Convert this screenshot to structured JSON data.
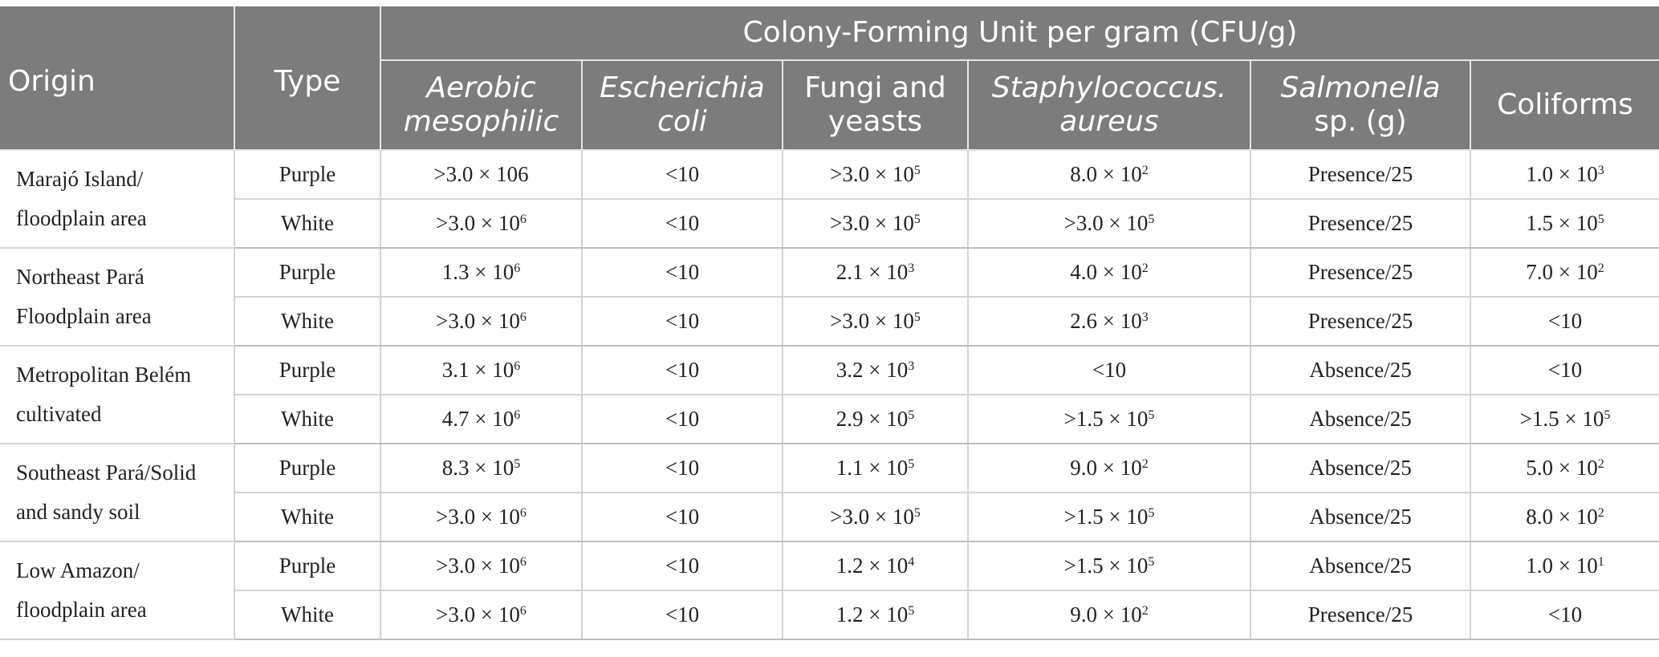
{
  "table": {
    "col_origin": "Origin",
    "col_type": "Type",
    "col_group": "Colony-Forming Unit per gram (CFU/g)",
    "sub": {
      "aerobic_1": "Aerobic",
      "aerobic_2": "mesophilic",
      "ecoli_1": "Escherichia",
      "ecoli_2": "coli",
      "fungi_1": "Fungi and",
      "fungi_2": "yeasts",
      "staph_1": "Staphylococcus.",
      "staph_2": "aureus",
      "salm_1": "Salmonella",
      "salm_2": "sp. (g)",
      "coliforms": "Coliforms"
    },
    "groups": [
      {
        "origin": "Marajó Island/ floodplain area",
        "rows": [
          {
            "type": "Purple",
            "aerobic": ">3.0 × 106",
            "ecoli": "<10",
            "fungi": ">3.0 × 10^5",
            "staph": "8.0 × 10^2",
            "salmonella": "Presence/25",
            "coliforms": "1.0 × 10^3"
          },
          {
            "type": "White",
            "aerobic": ">3.0 × 10^6",
            "ecoli": "<10",
            "fungi": ">3.0 × 10^5",
            "staph": ">3.0 × 10^5",
            "salmonella": "Presence/25",
            "coliforms": "1.5 × 10^5"
          }
        ]
      },
      {
        "origin": "Northeast Pará Floodplain area",
        "rows": [
          {
            "type": "Purple",
            "aerobic": "1.3 × 10^6",
            "ecoli": "<10",
            "fungi": "2.1 × 10^3",
            "staph": "4.0 × 10^2",
            "salmonella": "Presence/25",
            "coliforms": "7.0 × 10^2"
          },
          {
            "type": "White",
            "aerobic": ">3.0 × 10^6",
            "ecoli": "<10",
            "fungi": ">3.0 × 10^5",
            "staph": "2.6 × 10^3",
            "salmonella": "Presence/25",
            "coliforms": "<10"
          }
        ]
      },
      {
        "origin": "Metropolitan Belém cultivated",
        "rows": [
          {
            "type": "Purple",
            "aerobic": "3.1 × 10^6",
            "ecoli": "<10",
            "fungi": "3.2 × 10^3",
            "staph": "<10",
            "salmonella": "Absence/25",
            "coliforms": "<10"
          },
          {
            "type": "White",
            "aerobic": "4.7 × 10^6",
            "ecoli": "<10",
            "fungi": "2.9 × 10^5",
            "staph": ">1.5 × 10^5",
            "salmonella": "Absence/25",
            "coliforms": ">1.5 × 10^5"
          }
        ]
      },
      {
        "origin": "Southeast Pará/Solid and sandy soil",
        "rows": [
          {
            "type": "Purple",
            "aerobic": "8.3 × 10^5",
            "ecoli": "<10",
            "fungi": "1.1 × 10^5",
            "staph": "9.0 × 10^2",
            "salmonella": "Absence/25",
            "coliforms": "5.0 × 10^2"
          },
          {
            "type": "White",
            "aerobic": ">3.0 × 10^6",
            "ecoli": "<10",
            "fungi": ">3.0 × 10^5",
            "staph": ">1.5 × 10^5",
            "salmonella": "Absence/25",
            "coliforms": "8.0 × 10^2"
          }
        ]
      },
      {
        "origin": "Low Amazon/ floodplain area",
        "rows": [
          {
            "type": "Purple",
            "aerobic": ">3.0 × 10^6",
            "ecoli": "<10",
            "fungi": "1.2 × 10^4",
            "staph": ">1.5 × 10^5",
            "salmonella": "Absence/25",
            "coliforms": "1.0 × 10^1"
          },
          {
            "type": "White",
            "aerobic": ">3.0 × 10^6",
            "ecoli": "<10",
            "fungi": "1.2 × 10^5",
            "staph": "9.0 × 10^2",
            "salmonella": "Presence/25",
            "coliforms": "<10"
          }
        ]
      }
    ]
  }
}
